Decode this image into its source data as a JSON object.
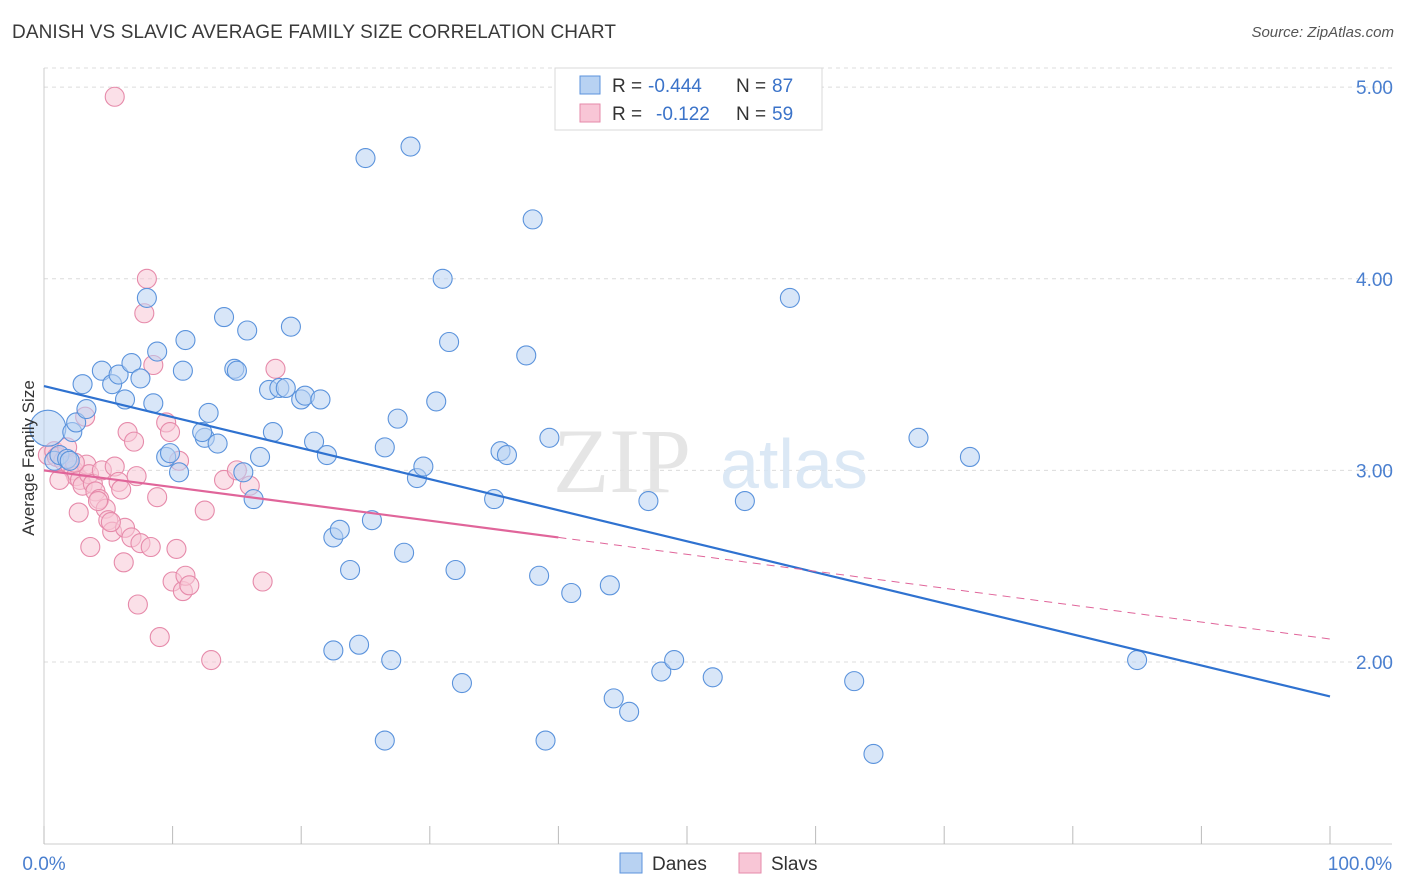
{
  "title": "DANISH VS SLAVIC AVERAGE FAMILY SIZE CORRELATION CHART",
  "source": "Source: ZipAtlas.com",
  "colors": {
    "danes_fill": "#b8d2f2",
    "danes_stroke": "#5b93dc",
    "danes_line": "#2f72d0",
    "slavs_fill": "#f8c6d6",
    "slavs_stroke": "#e68aaa",
    "slavs_line": "#e0659a",
    "grid": "#dcdcdc",
    "tick_label": "#4a7fcf"
  },
  "legend": {
    "danes": {
      "r_label": "R =",
      "r_value": "-0.444",
      "n_label": "N =",
      "n_value": "87"
    },
    "slavs": {
      "r_label": "R =",
      "r_value": "-0.122",
      "n_label": "N =",
      "n_value": "59"
    }
  },
  "watermark": {
    "zip": "ZIP",
    "atlas": "atlas"
  },
  "chart_data": {
    "type": "scatter",
    "title": "DANISH VS SLAVIC AVERAGE FAMILY SIZE CORRELATION CHART",
    "xlabel": "",
    "ylabel": "Average Family Size",
    "xlim": [
      0,
      100
    ],
    "ylim": [
      1.05,
      5.1
    ],
    "x_tick_labels": [
      "0.0%",
      "100.0%"
    ],
    "y_ticks": [
      2.0,
      3.0,
      4.0,
      5.0
    ],
    "y_tick_labels": [
      "2.00",
      "3.00",
      "4.00",
      "5.00"
    ],
    "series": [
      {
        "name": "Danes",
        "points": [
          [
            0.3,
            3.22
          ],
          [
            0.8,
            3.05
          ],
          [
            1.2,
            3.08
          ],
          [
            1.8,
            3.06
          ],
          [
            2.2,
            3.2
          ],
          [
            2.5,
            3.25
          ],
          [
            3,
            3.45
          ],
          [
            3.3,
            3.32
          ],
          [
            4.5,
            3.52
          ],
          [
            5.3,
            3.45
          ],
          [
            5.8,
            3.5
          ],
          [
            6.3,
            3.37
          ],
          [
            6.8,
            3.56
          ],
          [
            7.5,
            3.48
          ],
          [
            8,
            3.9
          ],
          [
            8.5,
            3.35
          ],
          [
            8.8,
            3.62
          ],
          [
            9.5,
            3.07
          ],
          [
            9.8,
            3.09
          ],
          [
            10.5,
            2.99
          ],
          [
            10.8,
            3.52
          ],
          [
            11,
            3.68
          ],
          [
            12.5,
            3.17
          ],
          [
            12.3,
            3.2
          ],
          [
            12.8,
            3.3
          ],
          [
            13.5,
            3.14
          ],
          [
            14,
            3.8
          ],
          [
            14.8,
            3.53
          ],
          [
            15,
            3.52
          ],
          [
            15.5,
            2.99
          ],
          [
            15.8,
            3.73
          ],
          [
            16.3,
            2.85
          ],
          [
            16.8,
            3.07
          ],
          [
            17.5,
            3.42
          ],
          [
            17.8,
            3.2
          ],
          [
            18.3,
            3.43
          ],
          [
            18.8,
            3.43
          ],
          [
            19.2,
            3.75
          ],
          [
            20,
            3.37
          ],
          [
            20.3,
            3.39
          ],
          [
            21,
            3.15
          ],
          [
            21.5,
            3.37
          ],
          [
            22,
            3.08
          ],
          [
            22.5,
            2.65
          ],
          [
            23,
            2.69
          ],
          [
            23.8,
            2.48
          ],
          [
            24.5,
            2.09
          ],
          [
            25,
            4.63
          ],
          [
            25.5,
            2.74
          ],
          [
            26.5,
            3.12
          ],
          [
            27,
            2.01
          ],
          [
            27.5,
            3.27
          ],
          [
            28,
            2.57
          ],
          [
            28.5,
            4.69
          ],
          [
            29,
            2.96
          ],
          [
            29.5,
            3.02
          ],
          [
            30.5,
            3.36
          ],
          [
            31,
            4.0
          ],
          [
            31.5,
            3.67
          ],
          [
            32,
            2.48
          ],
          [
            32.5,
            1.89
          ],
          [
            35,
            2.85
          ],
          [
            35.5,
            3.1
          ],
          [
            36,
            3.08
          ],
          [
            37.5,
            3.6
          ],
          [
            38,
            4.31
          ],
          [
            38.5,
            2.45
          ],
          [
            39,
            1.59
          ],
          [
            39.3,
            3.17
          ],
          [
            41,
            2.36
          ],
          [
            44,
            2.4
          ],
          [
            44.3,
            1.81
          ],
          [
            45.5,
            1.74
          ],
          [
            47,
            2.84
          ],
          [
            48,
            1.95
          ],
          [
            49,
            2.01
          ],
          [
            52,
            1.92
          ],
          [
            54.5,
            2.84
          ],
          [
            58,
            3.9
          ],
          [
            63,
            1.9
          ],
          [
            64.5,
            1.52
          ],
          [
            68,
            3.17
          ],
          [
            72,
            3.07
          ],
          [
            85,
            2.01
          ],
          [
            22.5,
            2.06
          ],
          [
            26.5,
            1.59
          ],
          [
            2,
            3.05
          ]
        ]
      },
      {
        "name": "Slavs",
        "points": [
          [
            0.3,
            3.08
          ],
          [
            0.8,
            3.1
          ],
          [
            1.0,
            3.07
          ],
          [
            1.5,
            3.05
          ],
          [
            2.0,
            3.03
          ],
          [
            2.3,
            3.0
          ],
          [
            2.5,
            2.97
          ],
          [
            2.8,
            2.95
          ],
          [
            3.0,
            2.92
          ],
          [
            3.3,
            3.03
          ],
          [
            3.5,
            2.98
          ],
          [
            3.8,
            2.93
          ],
          [
            4.0,
            2.89
          ],
          [
            4.3,
            2.85
          ],
          [
            4.5,
            3.0
          ],
          [
            4.8,
            2.8
          ],
          [
            5.0,
            2.74
          ],
          [
            5.3,
            2.68
          ],
          [
            5.5,
            3.02
          ],
          [
            5.8,
            2.94
          ],
          [
            6.0,
            2.9
          ],
          [
            6.3,
            2.7
          ],
          [
            6.5,
            3.2
          ],
          [
            6.8,
            2.65
          ],
          [
            7.0,
            3.15
          ],
          [
            7.3,
            2.3
          ],
          [
            7.5,
            2.62
          ],
          [
            7.8,
            3.82
          ],
          [
            8.0,
            4.0
          ],
          [
            8.3,
            2.6
          ],
          [
            8.5,
            3.55
          ],
          [
            8.8,
            2.86
          ],
          [
            9.0,
            2.13
          ],
          [
            9.5,
            3.25
          ],
          [
            9.8,
            3.2
          ],
          [
            10,
            2.42
          ],
          [
            10.3,
            2.59
          ],
          [
            10.5,
            3.05
          ],
          [
            10.8,
            2.37
          ],
          [
            11,
            2.45
          ],
          [
            11.3,
            2.4
          ],
          [
            12.5,
            2.79
          ],
          [
            13,
            2.01
          ],
          [
            14,
            2.95
          ],
          [
            15,
            3.0
          ],
          [
            16,
            2.92
          ],
          [
            17,
            2.42
          ],
          [
            18,
            3.53
          ],
          [
            5.5,
            4.95
          ],
          [
            1.2,
            2.95
          ],
          [
            1.8,
            3.12
          ],
          [
            2.7,
            2.78
          ],
          [
            3.2,
            3.28
          ],
          [
            4.2,
            2.84
          ],
          [
            5.2,
            2.73
          ],
          [
            6.2,
            2.52
          ],
          [
            7.2,
            2.97
          ],
          [
            3.6,
            2.6
          ],
          [
            2.4,
            3.04
          ]
        ]
      }
    ],
    "trend_lines": [
      {
        "series": "Danes",
        "x": [
          0,
          100
        ],
        "y": [
          3.44,
          1.82
        ],
        "style": "solid"
      },
      {
        "series": "Slavs",
        "x": [
          0,
          40
        ],
        "y": [
          3.0,
          2.65
        ],
        "style": "solid"
      },
      {
        "series": "Slavs",
        "x": [
          40,
          100
        ],
        "y": [
          2.65,
          2.12
        ],
        "style": "dashed"
      }
    ],
    "legend_entries": [
      "Danes",
      "Slavs"
    ]
  }
}
